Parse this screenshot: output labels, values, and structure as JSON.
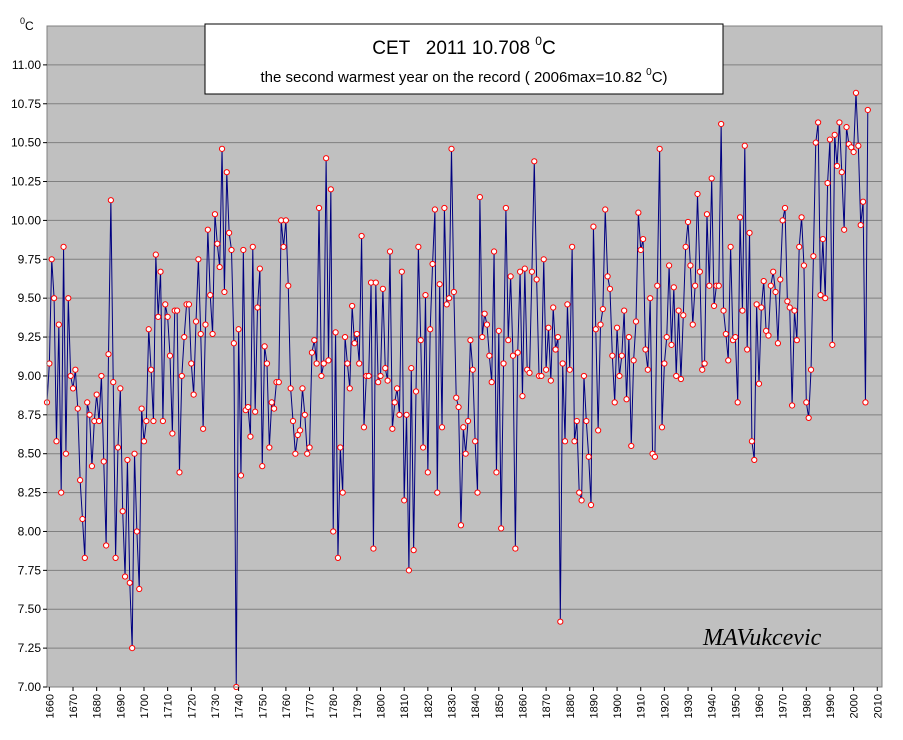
{
  "chart_data": {
    "type": "line",
    "title_prefix": "CET   2011 10.708 ",
    "title_sup": "0",
    "title_suffix": "C",
    "subtitle_prefix": "the second warmest year on the record ( 2006max=10.82 ",
    "subtitle_sup": "0",
    "subtitle_suffix": "C)",
    "y_unit_sup": "0",
    "y_unit": "C",
    "xlabel": "",
    "ylabel": "",
    "watermark": "MAVukcevic",
    "xlim": [
      1659,
      2012
    ],
    "ylim": [
      7.0,
      11.25
    ],
    "x_ticks": [
      1660,
      1670,
      1680,
      1690,
      1700,
      1710,
      1720,
      1730,
      1740,
      1750,
      1760,
      1770,
      1780,
      1790,
      1800,
      1810,
      1820,
      1830,
      1840,
      1850,
      1860,
      1870,
      1880,
      1890,
      1900,
      1910,
      1920,
      1930,
      1940,
      1950,
      1960,
      1970,
      1980,
      1990,
      2000,
      2010
    ],
    "y_ticks": [
      "7.00",
      "7.25",
      "7.50",
      "7.75",
      "8.00",
      "8.25",
      "8.50",
      "8.75",
      "9.00",
      "9.25",
      "9.50",
      "9.75",
      "10.00",
      "10.25",
      "10.50",
      "10.75",
      "11.00"
    ],
    "grid": true,
    "colors": {
      "plot_bg": "#c0c0c0",
      "grid": "#808080",
      "line": "#000080",
      "marker_edge": "#ff0000",
      "marker_fill": "#ffffff"
    },
    "series": [
      {
        "x_start": 1659,
        "values": [
          8.83,
          9.08,
          9.75,
          9.5,
          8.58,
          9.33,
          8.25,
          9.83,
          8.5,
          9.5,
          9.0,
          8.92,
          9.04,
          8.79,
          8.33,
          8.08,
          7.83,
          8.83,
          8.75,
          8.42,
          8.71,
          8.88,
          8.71,
          9.0,
          8.45,
          7.91,
          9.14,
          10.13,
          8.96,
          7.83,
          8.54,
          8.92,
          8.13,
          7.71,
          8.46,
          7.67,
          7.25,
          8.5,
          8.0,
          7.63,
          8.79,
          8.58,
          8.71,
          9.3,
          9.04,
          8.71,
          9.78,
          9.38,
          9.67,
          8.71,
          9.46,
          9.38,
          9.13,
          8.63,
          9.42,
          9.42,
          8.38,
          9.0,
          9.25,
          9.46,
          9.46,
          9.08,
          8.88,
          9.35,
          9.75,
          9.27,
          8.66,
          9.33,
          9.94,
          9.52,
          9.27,
          10.04,
          9.85,
          9.7,
          10.46,
          9.54,
          10.31,
          9.92,
          9.81,
          9.21,
          7.0,
          9.3,
          8.36,
          9.81,
          8.78,
          8.8,
          8.61,
          9.83,
          8.77,
          9.44,
          9.69,
          8.42,
          9.19,
          9.08,
          8.54,
          8.83,
          8.79,
          8.96,
          8.96,
          10.0,
          9.83,
          10.0,
          9.58,
          8.92,
          8.71,
          8.5,
          8.62,
          8.65,
          8.92,
          8.75,
          8.5,
          8.54,
          9.15,
          9.23,
          9.08,
          10.08,
          9.0,
          9.08,
          10.4,
          9.1,
          10.2,
          8.0,
          9.28,
          7.83,
          8.54,
          8.25,
          9.25,
          9.08,
          8.92,
          9.45,
          9.21,
          9.27,
          9.08,
          9.9,
          8.67,
          9.0,
          9.0,
          9.6,
          7.89,
          9.6,
          8.96,
          9.0,
          9.56,
          9.05,
          8.97,
          9.8,
          8.66,
          8.83,
          8.92,
          8.75,
          9.67,
          8.2,
          8.75,
          7.75,
          9.05,
          7.88,
          8.9,
          9.83,
          9.23,
          8.54,
          9.52,
          8.38,
          9.3,
          9.72,
          10.07,
          8.25,
          9.59,
          8.67,
          10.08,
          9.46,
          9.5,
          10.46,
          9.54,
          8.86,
          8.8,
          8.04,
          8.67,
          8.5,
          8.71,
          9.23,
          9.04,
          8.58,
          8.25,
          10.15,
          9.25,
          9.4,
          9.33,
          9.13,
          8.96,
          9.8,
          8.38,
          9.29,
          8.02,
          9.08,
          10.08,
          9.23,
          9.64,
          9.13,
          7.89,
          9.15,
          9.67,
          8.87,
          9.69,
          9.04,
          9.02,
          9.67,
          10.38,
          9.62,
          9.0,
          9.0,
          9.75,
          9.04,
          9.31,
          8.97,
          9.44,
          9.17,
          9.25,
          7.42,
          9.08,
          8.58,
          9.46,
          9.04,
          9.83,
          8.58,
          8.71,
          8.25,
          8.2,
          9.0,
          8.71,
          8.48,
          8.17,
          9.96,
          9.3,
          8.65,
          9.33,
          9.43,
          10.07,
          9.64,
          9.56,
          9.13,
          8.83,
          9.31,
          9.0,
          9.13,
          9.42,
          8.85,
          9.25,
          8.55,
          9.1,
          9.35,
          10.05,
          9.81,
          9.88,
          9.17,
          9.04,
          9.5,
          8.5,
          8.48,
          9.58,
          10.46,
          8.67,
          9.08,
          9.25,
          9.71,
          9.2,
          9.57,
          9.0,
          9.42,
          8.98,
          9.39,
          9.83,
          9.99,
          9.71,
          9.33,
          9.58,
          10.17,
          9.67,
          9.04,
          9.08,
          10.04,
          9.58,
          10.27,
          9.45,
          9.58,
          9.58,
          10.62,
          9.42,
          9.27,
          9.1,
          9.83,
          9.23,
          9.25,
          8.83,
          10.02,
          9.42,
          10.48,
          9.17,
          9.92,
          8.58,
          8.46,
          9.46,
          8.95,
          9.44,
          9.61,
          9.29,
          9.26,
          9.58,
          9.67,
          9.54,
          9.21,
          9.62,
          10.0,
          10.08,
          9.48,
          9.44,
          8.81,
          9.42,
          9.23,
          9.83,
          10.02,
          9.71,
          8.83,
          8.73,
          9.04,
          9.77,
          10.5,
          10.63,
          9.52,
          9.88,
          9.5,
          10.24,
          10.52,
          9.2,
          10.55,
          10.35,
          10.63,
          10.31,
          9.94,
          10.6,
          10.49,
          10.47,
          10.44,
          10.82,
          10.48,
          9.97,
          10.12,
          8.83,
          10.71
        ]
      }
    ]
  }
}
